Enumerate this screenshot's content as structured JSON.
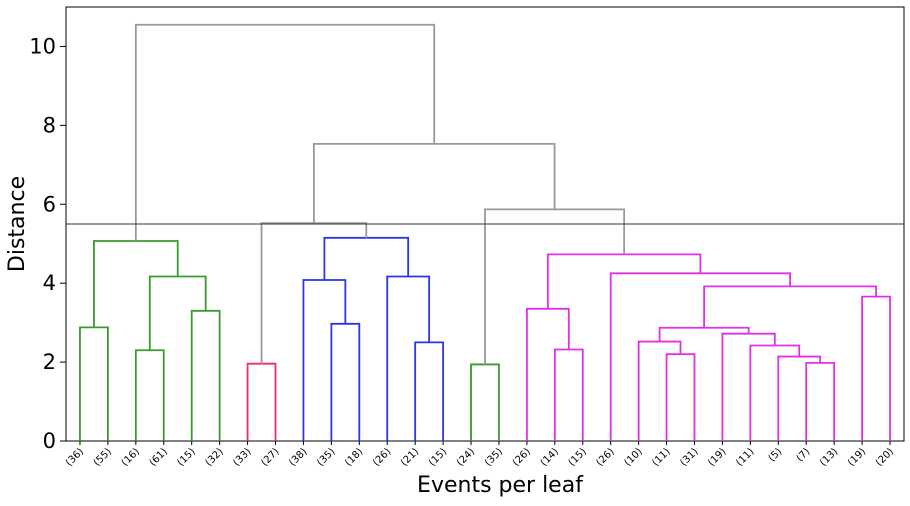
{
  "chart_data": {
    "type": "dendrogram",
    "title": "",
    "xlabel": "Events per leaf",
    "ylabel": "Distance",
    "ylim": [
      0,
      11
    ],
    "yticks": [
      0,
      2,
      4,
      6,
      8,
      10
    ],
    "cut_height": 5.5,
    "grid": false,
    "leaves": [
      "(36)",
      "(55)",
      "(16)",
      "(61)",
      "(15)",
      "(32)",
      "(33)",
      "(27)",
      "(38)",
      "(35)",
      "(18)",
      "(26)",
      "(21)",
      "(15)",
      "(24)",
      "(35)",
      "(26)",
      "(14)",
      "(15)",
      "(26)",
      "(10)",
      "(11)",
      "(31)",
      "(19)",
      "(11)",
      "(5)",
      "(7)",
      "(13)",
      "(19)",
      "(20)"
    ],
    "colors": {
      "above_cut": "#999999",
      "cluster_green": "#3a9a2e",
      "cluster_red": "#e8306a",
      "cluster_blue": "#2a36e8",
      "cluster_magenta": "#e030e8",
      "cut_line": "#333333"
    },
    "links": [
      {
        "id": 0,
        "left": "L0",
        "right": "L1",
        "height": 2.88,
        "color": "cluster_green"
      },
      {
        "id": 1,
        "left": "L2",
        "right": "L3",
        "height": 2.3,
        "color": "cluster_green"
      },
      {
        "id": 2,
        "left": "L4",
        "right": "L5",
        "height": 3.3,
        "color": "cluster_green"
      },
      {
        "id": 3,
        "left": "N1",
        "right": "N2",
        "height": 4.17,
        "color": "cluster_green"
      },
      {
        "id": 4,
        "left": "N0",
        "right": "N3",
        "height": 5.07,
        "color": "cluster_green"
      },
      {
        "id": 5,
        "left": "L6",
        "right": "L7",
        "height": 1.96,
        "color": "cluster_red"
      },
      {
        "id": 6,
        "left": "L9",
        "right": "L10",
        "height": 2.97,
        "color": "cluster_blue"
      },
      {
        "id": 7,
        "left": "L8",
        "right": "N6",
        "height": 4.08,
        "color": "cluster_blue"
      },
      {
        "id": 8,
        "left": "L12",
        "right": "L13",
        "height": 2.5,
        "color": "cluster_blue"
      },
      {
        "id": 9,
        "left": "L11",
        "right": "N8",
        "height": 4.17,
        "color": "cluster_blue"
      },
      {
        "id": 10,
        "left": "N7",
        "right": "N9",
        "height": 5.15,
        "color": "cluster_blue"
      },
      {
        "id": 11,
        "left": "N5",
        "right": "N10",
        "height": 5.52,
        "color": "above_cut"
      },
      {
        "id": 12,
        "left": "L14",
        "right": "L15",
        "height": 1.94,
        "color": "cluster_green"
      },
      {
        "id": 13,
        "left": "L17",
        "right": "L18",
        "height": 2.32,
        "color": "cluster_magenta"
      },
      {
        "id": 14,
        "left": "L16",
        "right": "N13",
        "height": 3.35,
        "color": "cluster_magenta"
      },
      {
        "id": 15,
        "left": "L21",
        "right": "L22",
        "height": 2.2,
        "color": "cluster_magenta"
      },
      {
        "id": 16,
        "left": "L20",
        "right": "N15",
        "height": 2.52,
        "color": "cluster_magenta"
      },
      {
        "id": 17,
        "left": "L26",
        "right": "L27",
        "height": 1.98,
        "color": "cluster_magenta"
      },
      {
        "id": 18,
        "left": "L25",
        "right": "N17",
        "height": 2.14,
        "color": "cluster_magenta"
      },
      {
        "id": 19,
        "left": "L24",
        "right": "N18",
        "height": 2.42,
        "color": "cluster_magenta"
      },
      {
        "id": 20,
        "left": "L23",
        "right": "N19",
        "height": 2.72,
        "color": "cluster_magenta"
      },
      {
        "id": 21,
        "left": "N16",
        "right": "N20",
        "height": 2.87,
        "color": "cluster_magenta"
      },
      {
        "id": 22,
        "left": "L28",
        "right": "L29",
        "height": 3.66,
        "color": "cluster_magenta"
      },
      {
        "id": 23,
        "left": "N21",
        "right": "N22",
        "height": 3.92,
        "color": "cluster_magenta"
      },
      {
        "id": 24,
        "left": "L19",
        "right": "N23",
        "height": 4.25,
        "color": "cluster_magenta"
      },
      {
        "id": 25,
        "left": "N14",
        "right": "N24",
        "height": 4.73,
        "color": "cluster_magenta"
      },
      {
        "id": 26,
        "left": "N12",
        "right": "N25",
        "height": 5.87,
        "color": "above_cut"
      },
      {
        "id": 27,
        "left": "N11",
        "right": "N26",
        "height": 7.53,
        "color": "above_cut"
      },
      {
        "id": 28,
        "left": "N4",
        "right": "N27",
        "height": 10.55,
        "color": "above_cut"
      }
    ]
  }
}
